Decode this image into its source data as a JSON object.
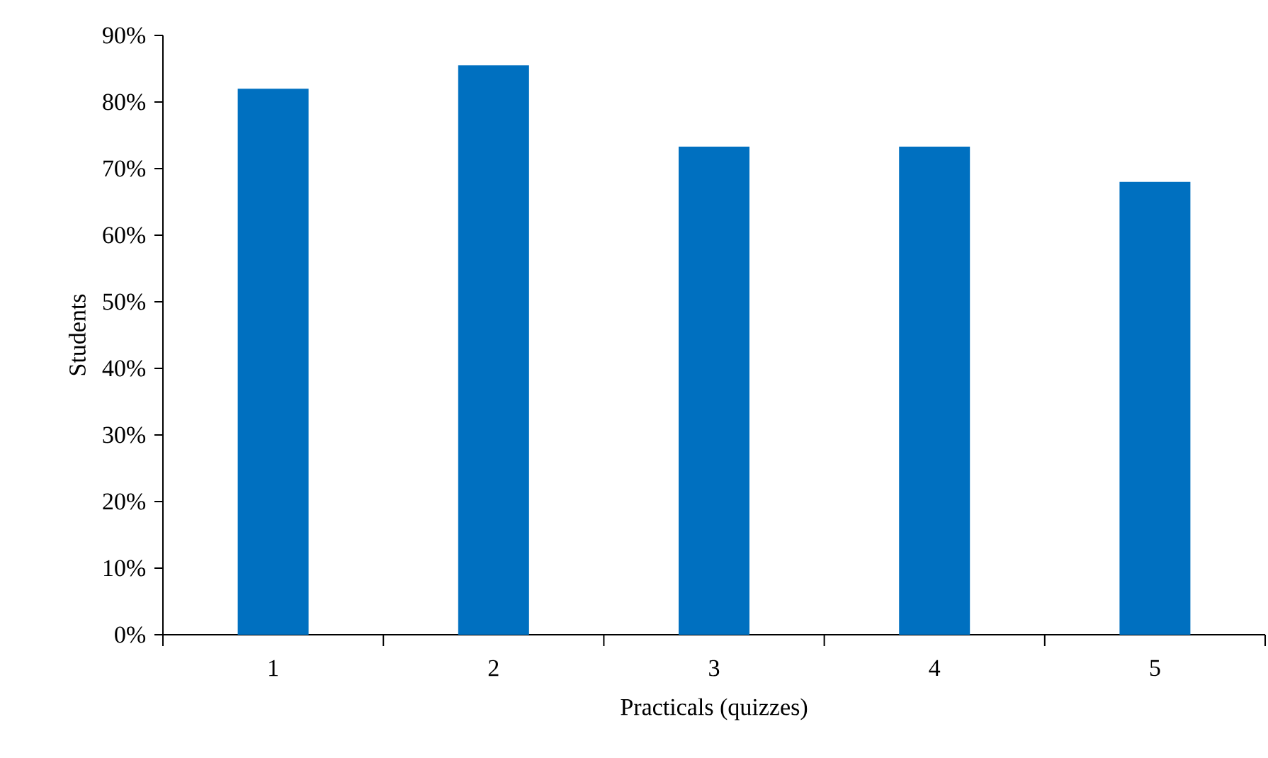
{
  "chart_data": {
    "type": "bar",
    "xlabel": "Practicals (quizzes)",
    "ylabel": "Students",
    "categories": [
      "1",
      "2",
      "3",
      "4",
      "5"
    ],
    "values": [
      82,
      85.5,
      73.3,
      73.3,
      68
    ],
    "color": "#0070c0",
    "ylim": [
      0,
      90
    ],
    "yticks": [
      {
        "value": 0,
        "label": "0%"
      },
      {
        "value": 10,
        "label": "10%"
      },
      {
        "value": 20,
        "label": "20%"
      },
      {
        "value": 30,
        "label": "30%"
      },
      {
        "value": 40,
        "label": "40%"
      },
      {
        "value": 50,
        "label": "50%"
      },
      {
        "value": 60,
        "label": "60%"
      },
      {
        "value": 70,
        "label": "70%"
      },
      {
        "value": 80,
        "label": "80%"
      },
      {
        "value": 90,
        "label": "90%"
      }
    ],
    "grid": false
  }
}
